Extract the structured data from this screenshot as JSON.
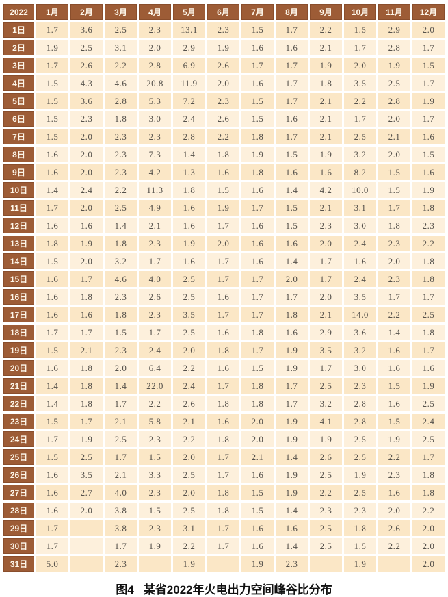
{
  "caption": {
    "figure_label": "图4",
    "text": "某省2022年火电出力空间峰谷比分布"
  },
  "chart_data": {
    "type": "table",
    "title": "图4 某省2022年火电出力空间峰谷比分布",
    "corner_label": "2022",
    "columns": [
      "1月",
      "2月",
      "3月",
      "4月",
      "5月",
      "6月",
      "7月",
      "8月",
      "9月",
      "10月",
      "11月",
      "12月"
    ],
    "rows": [
      {
        "day": "1日",
        "values": [
          "1.7",
          "3.6",
          "2.5",
          "2.3",
          "13.1",
          "2.3",
          "1.5",
          "1.7",
          "2.2",
          "1.5",
          "2.9",
          "2.0"
        ]
      },
      {
        "day": "2日",
        "values": [
          "1.9",
          "2.5",
          "3.1",
          "2.0",
          "2.9",
          "1.9",
          "1.6",
          "1.6",
          "2.1",
          "1.7",
          "2.8",
          "1.7"
        ]
      },
      {
        "day": "3日",
        "values": [
          "1.7",
          "2.6",
          "2.2",
          "2.8",
          "6.9",
          "2.6",
          "1.7",
          "1.7",
          "1.9",
          "2.0",
          "1.9",
          "1.5"
        ]
      },
      {
        "day": "4日",
        "values": [
          "1.5",
          "4.3",
          "4.6",
          "20.8",
          "11.9",
          "2.0",
          "1.6",
          "1.7",
          "1.8",
          "3.5",
          "2.5",
          "1.7"
        ]
      },
      {
        "day": "5日",
        "values": [
          "1.5",
          "3.6",
          "2.8",
          "5.3",
          "7.2",
          "2.3",
          "1.5",
          "1.7",
          "2.1",
          "2.2",
          "2.8",
          "1.9"
        ]
      },
      {
        "day": "6日",
        "values": [
          "1.5",
          "2.3",
          "1.8",
          "3.0",
          "2.4",
          "2.6",
          "1.5",
          "1.6",
          "2.1",
          "1.7",
          "2.0",
          "1.7"
        ]
      },
      {
        "day": "7日",
        "values": [
          "1.5",
          "2.0",
          "2.3",
          "2.3",
          "2.8",
          "2.2",
          "1.8",
          "1.7",
          "2.1",
          "2.5",
          "2.1",
          "1.6"
        ]
      },
      {
        "day": "8日",
        "values": [
          "1.6",
          "2.0",
          "2.3",
          "7.3",
          "1.4",
          "1.8",
          "1.9",
          "1.5",
          "1.9",
          "3.2",
          "2.0",
          "1.5"
        ]
      },
      {
        "day": "9日",
        "values": [
          "1.6",
          "2.0",
          "2.3",
          "4.2",
          "1.3",
          "1.6",
          "1.8",
          "1.6",
          "1.6",
          "8.2",
          "1.5",
          "1.6"
        ]
      },
      {
        "day": "10日",
        "values": [
          "1.4",
          "2.4",
          "2.2",
          "11.3",
          "1.8",
          "1.5",
          "1.6",
          "1.4",
          "4.2",
          "10.0",
          "1.5",
          "1.9"
        ]
      },
      {
        "day": "11日",
        "values": [
          "1.7",
          "2.0",
          "2.5",
          "4.9",
          "1.6",
          "1.9",
          "1.7",
          "1.5",
          "2.1",
          "3.1",
          "1.7",
          "1.8"
        ]
      },
      {
        "day": "12日",
        "values": [
          "1.6",
          "1.6",
          "1.4",
          "2.1",
          "1.6",
          "1.7",
          "1.6",
          "1.5",
          "2.3",
          "3.0",
          "1.8",
          "2.3"
        ]
      },
      {
        "day": "13日",
        "values": [
          "1.8",
          "1.9",
          "1.8",
          "2.3",
          "1.9",
          "2.0",
          "1.6",
          "1.6",
          "2.0",
          "2.4",
          "2.3",
          "2.2"
        ]
      },
      {
        "day": "14日",
        "values": [
          "1.5",
          "2.0",
          "3.2",
          "1.7",
          "1.6",
          "1.7",
          "1.6",
          "1.4",
          "1.7",
          "1.6",
          "2.0",
          "1.8"
        ]
      },
      {
        "day": "15日",
        "values": [
          "1.6",
          "1.7",
          "4.6",
          "4.0",
          "2.5",
          "1.7",
          "1.7",
          "2.0",
          "1.7",
          "2.4",
          "2.3",
          "1.8"
        ]
      },
      {
        "day": "16日",
        "values": [
          "1.6",
          "1.8",
          "2.3",
          "2.6",
          "2.5",
          "1.6",
          "1.7",
          "1.7",
          "2.0",
          "3.5",
          "1.7",
          "1.7"
        ]
      },
      {
        "day": "17日",
        "values": [
          "1.6",
          "1.6",
          "1.8",
          "2.3",
          "3.5",
          "1.7",
          "1.7",
          "1.8",
          "2.1",
          "14.0",
          "2.2",
          "2.5"
        ]
      },
      {
        "day": "18日",
        "values": [
          "1.7",
          "1.7",
          "1.5",
          "1.7",
          "2.5",
          "1.6",
          "1.8",
          "1.6",
          "2.9",
          "3.6",
          "1.4",
          "1.8"
        ]
      },
      {
        "day": "19日",
        "values": [
          "1.5",
          "2.1",
          "2.3",
          "2.4",
          "2.0",
          "1.8",
          "1.7",
          "1.9",
          "3.5",
          "3.2",
          "1.6",
          "1.7"
        ]
      },
      {
        "day": "20日",
        "values": [
          "1.6",
          "1.8",
          "2.0",
          "6.4",
          "2.2",
          "1.6",
          "1.5",
          "1.9",
          "1.7",
          "3.0",
          "1.6",
          "1.6"
        ]
      },
      {
        "day": "21日",
        "values": [
          "1.4",
          "1.8",
          "1.4",
          "22.0",
          "2.4",
          "1.7",
          "1.8",
          "1.7",
          "2.5",
          "2.3",
          "1.5",
          "1.9"
        ]
      },
      {
        "day": "22日",
        "values": [
          "1.4",
          "1.8",
          "1.7",
          "2.2",
          "2.6",
          "1.8",
          "1.8",
          "1.7",
          "3.2",
          "2.8",
          "1.6",
          "2.5"
        ]
      },
      {
        "day": "23日",
        "values": [
          "1.5",
          "1.7",
          "2.1",
          "5.8",
          "2.1",
          "1.6",
          "2.0",
          "1.9",
          "4.1",
          "2.8",
          "1.5",
          "2.4"
        ]
      },
      {
        "day": "24日",
        "values": [
          "1.7",
          "1.9",
          "2.5",
          "2.3",
          "2.2",
          "1.8",
          "2.0",
          "1.9",
          "1.9",
          "2.5",
          "1.9",
          "2.5"
        ]
      },
      {
        "day": "25日",
        "values": [
          "1.5",
          "2.5",
          "1.7",
          "1.5",
          "2.0",
          "1.7",
          "2.1",
          "1.4",
          "2.6",
          "2.5",
          "2.2",
          "1.7"
        ]
      },
      {
        "day": "26日",
        "values": [
          "1.6",
          "3.5",
          "2.1",
          "3.3",
          "2.5",
          "1.7",
          "1.6",
          "1.9",
          "2.5",
          "1.9",
          "2.3",
          "1.8"
        ]
      },
      {
        "day": "27日",
        "values": [
          "1.6",
          "2.7",
          "4.0",
          "2.3",
          "2.0",
          "1.8",
          "1.5",
          "1.9",
          "2.2",
          "2.5",
          "1.6",
          "1.8"
        ]
      },
      {
        "day": "28日",
        "values": [
          "1.6",
          "2.0",
          "3.8",
          "1.5",
          "2.5",
          "1.8",
          "1.5",
          "1.4",
          "2.3",
          "2.3",
          "2.0",
          "2.2"
        ]
      },
      {
        "day": "29日",
        "values": [
          "1.7",
          "",
          "3.8",
          "2.3",
          "3.1",
          "1.7",
          "1.6",
          "1.6",
          "2.5",
          "1.8",
          "2.6",
          "2.0"
        ]
      },
      {
        "day": "30日",
        "values": [
          "1.7",
          "",
          "1.7",
          "1.9",
          "2.2",
          "1.7",
          "1.6",
          "1.4",
          "2.5",
          "1.5",
          "2.2",
          "2.0"
        ]
      },
      {
        "day": "31日",
        "values": [
          "5.0",
          "",
          "2.3",
          "",
          "1.9",
          "",
          "1.9",
          "2.3",
          "",
          "1.9",
          "",
          "2.0"
        ]
      }
    ]
  },
  "colors": {
    "header_bg": "#9d5c36",
    "header_text": "#fdf6e9",
    "cell_bg_odd": "#fbe7c6",
    "cell_bg_even": "#fdf0dc",
    "cell_text": "#56524c"
  }
}
